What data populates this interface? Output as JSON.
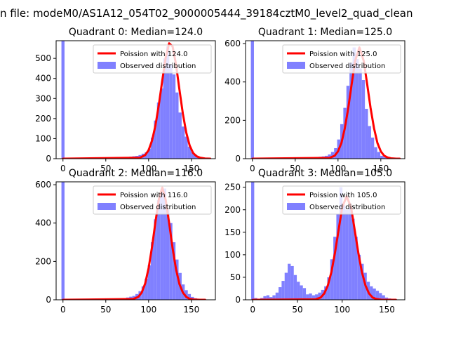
{
  "suptitle": "n file: modeM0/AS1A12_054T02_9000005444_39184cztM0_level2_quad_clean",
  "colors": {
    "bars": "#8080ff",
    "curve": "#ff0000",
    "axes": "#000000",
    "background": "#ffffff"
  },
  "chart_data": [
    {
      "type": "bar",
      "title": "Quadrant 0: Median=124.0",
      "xlim": [
        -8,
        178
      ],
      "ylim": [
        0,
        588
      ],
      "xticks": [
        0,
        50,
        100,
        150
      ],
      "yticks": [
        0,
        100,
        200,
        300,
        400,
        500
      ],
      "legend": {
        "placement": "top-right",
        "entries": [
          "Poission with 124.0",
          "Observed distribution"
        ]
      },
      "bin_width": 3.6,
      "bin_centers": [
        0.0,
        3.6,
        7.2,
        10.8,
        14.4,
        18.0,
        21.6,
        25.2,
        28.8,
        32.4,
        36.0,
        39.6,
        43.2,
        46.8,
        50.4,
        54.0,
        57.6,
        61.2,
        64.8,
        68.4,
        72.0,
        75.6,
        79.2,
        82.8,
        86.4,
        90.0,
        93.6,
        97.2,
        100.8,
        104.4,
        108.0,
        111.6,
        115.2,
        118.8,
        122.4,
        126.0,
        129.6,
        133.2,
        136.8,
        140.4,
        144.0,
        147.6,
        151.2,
        154.8,
        158.4,
        162.0,
        165.6,
        169.2,
        172.8
      ],
      "bin_counts": [
        588,
        2,
        1,
        1,
        1,
        1,
        1,
        1,
        1,
        1,
        1,
        1,
        1,
        1,
        1,
        1,
        1,
        2,
        2,
        3,
        5,
        8,
        10,
        12,
        14,
        18,
        25,
        32,
        50,
        105,
        190,
        280,
        350,
        500,
        560,
        470,
        420,
        330,
        230,
        160,
        110,
        60,
        35,
        20,
        10,
        5,
        3,
        1,
        1
      ],
      "poisson_mean": 124.0,
      "curve_x": [
        0,
        90,
        96,
        100,
        104,
        108,
        112,
        116,
        120,
        124,
        128,
        132,
        136,
        140,
        144,
        148,
        152,
        156,
        160,
        166,
        172
      ],
      "curve_y": [
        0,
        5,
        18,
        42,
        90,
        165,
        270,
        390,
        505,
        575,
        560,
        470,
        345,
        225,
        130,
        65,
        28,
        12,
        5,
        1,
        0
      ]
    },
    {
      "type": "bar",
      "title": "Quadrant 1: Median=125.0",
      "xlim": [
        -8,
        178
      ],
      "ylim": [
        0,
        615
      ],
      "xticks": [
        0,
        50,
        100,
        150
      ],
      "yticks": [
        0,
        200,
        400,
        600
      ],
      "legend": {
        "placement": "top-right",
        "entries": [
          "Poission with 125.0",
          "Observed distribution"
        ]
      },
      "bin_width": 3.6,
      "bin_centers": [
        0.0,
        3.6,
        7.2,
        10.8,
        14.4,
        18.0,
        21.6,
        25.2,
        28.8,
        32.4,
        36.0,
        39.6,
        43.2,
        46.8,
        50.4,
        54.0,
        57.6,
        61.2,
        64.8,
        68.4,
        72.0,
        75.6,
        79.2,
        82.8,
        86.4,
        90.0,
        93.6,
        97.2,
        100.8,
        104.4,
        108.0,
        111.6,
        115.2,
        118.8,
        122.4,
        126.0,
        129.6,
        133.2,
        136.8,
        140.4,
        144.0,
        147.6,
        151.2,
        154.8,
        158.4,
        162.0,
        165.6,
        169.2,
        172.8
      ],
      "bin_counts": [
        615,
        2,
        1,
        1,
        1,
        1,
        1,
        1,
        1,
        1,
        1,
        1,
        1,
        1,
        1,
        1,
        1,
        2,
        3,
        4,
        6,
        8,
        10,
        12,
        15,
        22,
        35,
        55,
        100,
        180,
        265,
        380,
        500,
        580,
        520,
        470,
        410,
        260,
        170,
        110,
        60,
        35,
        15,
        8,
        4,
        2,
        1,
        1,
        1
      ],
      "poisson_mean": 125.0,
      "curve_x": [
        0,
        90,
        96,
        100,
        104,
        108,
        112,
        116,
        120,
        125,
        130,
        134,
        138,
        142,
        146,
        150,
        154,
        158,
        162,
        168,
        172
      ],
      "curve_y": [
        0,
        4,
        15,
        38,
        82,
        160,
        265,
        390,
        510,
        580,
        510,
        390,
        265,
        160,
        82,
        38,
        15,
        6,
        2,
        0,
        0
      ]
    },
    {
      "type": "bar",
      "title": "Quadrant 2: Median=116.0",
      "xlim": [
        -8,
        178
      ],
      "ylim": [
        0,
        615
      ],
      "xticks": [
        0,
        50,
        100,
        150
      ],
      "yticks": [
        0,
        200,
        400,
        600
      ],
      "legend": {
        "placement": "top-right",
        "entries": [
          "Poission with 116.0",
          "Observed distribution"
        ]
      },
      "bin_width": 3.6,
      "bin_centers": [
        0.0,
        3.6,
        7.2,
        10.8,
        14.4,
        18.0,
        21.6,
        25.2,
        28.8,
        32.4,
        36.0,
        39.6,
        43.2,
        46.8,
        50.4,
        54.0,
        57.6,
        61.2,
        64.8,
        68.4,
        72.0,
        75.6,
        79.2,
        82.8,
        86.4,
        90.0,
        93.6,
        97.2,
        100.8,
        104.4,
        108.0,
        111.6,
        115.2,
        118.8,
        122.4,
        126.0,
        129.6,
        133.2,
        136.8,
        140.4,
        144.0,
        147.6,
        151.2,
        154.8,
        158.4,
        162.0,
        165.6
      ],
      "bin_counts": [
        615,
        2,
        1,
        1,
        1,
        1,
        1,
        1,
        1,
        1,
        1,
        1,
        1,
        1,
        1,
        1,
        1,
        2,
        3,
        5,
        8,
        12,
        16,
        20,
        30,
        45,
        70,
        110,
        180,
        300,
        420,
        520,
        560,
        580,
        470,
        400,
        300,
        210,
        140,
        80,
        50,
        30,
        15,
        8,
        4,
        2,
        1
      ],
      "poisson_mean": 116.0,
      "curve_x": [
        0,
        82,
        88,
        92,
        96,
        100,
        104,
        108,
        112,
        116,
        120,
        124,
        128,
        132,
        136,
        140,
        144,
        148,
        152,
        160,
        166
      ],
      "curve_y": [
        0,
        4,
        15,
        38,
        85,
        165,
        275,
        405,
        525,
        585,
        520,
        400,
        270,
        160,
        82,
        38,
        15,
        5,
        2,
        0,
        0
      ]
    },
    {
      "type": "bar",
      "title": "Quadrant 3: Median=105.0",
      "xlim": [
        -8,
        170
      ],
      "ylim": [
        0,
        262
      ],
      "xticks": [
        0,
        50,
        100,
        150
      ],
      "yticks": [
        0,
        50,
        100,
        150,
        200,
        250
      ],
      "legend": {
        "placement": "top-right",
        "entries": [
          "Poission with 105.0",
          "Observed distribution"
        ]
      },
      "bin_width": 3.4,
      "bin_centers": [
        0.0,
        3.4,
        6.8,
        10.2,
        13.6,
        17.0,
        20.4,
        23.8,
        27.2,
        30.6,
        34.0,
        37.4,
        40.8,
        44.2,
        47.6,
        51.0,
        54.4,
        57.8,
        61.2,
        64.6,
        68.0,
        71.4,
        74.8,
        78.2,
        81.6,
        85.0,
        88.4,
        91.8,
        95.2,
        98.6,
        102.0,
        105.4,
        108.8,
        112.2,
        115.6,
        119.0,
        122.4,
        125.8,
        129.2,
        132.6,
        136.0,
        139.4,
        142.8,
        146.2,
        149.6,
        153.0,
        156.4,
        159.8
      ],
      "bin_counts": [
        262,
        4,
        2,
        4,
        8,
        10,
        6,
        10,
        16,
        28,
        42,
        60,
        80,
        75,
        55,
        40,
        32,
        26,
        12,
        14,
        10,
        12,
        16,
        22,
        30,
        50,
        90,
        140,
        190,
        250,
        210,
        200,
        205,
        180,
        140,
        100,
        80,
        60,
        40,
        30,
        25,
        20,
        15,
        10,
        5,
        3,
        2,
        1
      ],
      "poisson_mean": 105.0,
      "curve_x": [
        0,
        70,
        76,
        80,
        84,
        88,
        92,
        96,
        100,
        105,
        110,
        114,
        118,
        122,
        126,
        130,
        134,
        138,
        144,
        152,
        160
      ],
      "curve_y": [
        0,
        1,
        5,
        14,
        32,
        62,
        105,
        155,
        205,
        230,
        205,
        155,
        105,
        62,
        32,
        14,
        5,
        2,
        0,
        0,
        0
      ]
    }
  ]
}
